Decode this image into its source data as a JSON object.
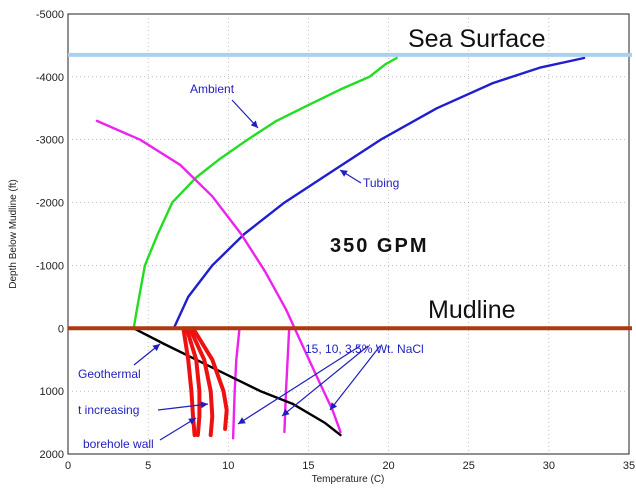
{
  "chart_data": {
    "type": "line",
    "title": "",
    "xlabel": "Temperature (C)",
    "ylabel": "Depth Below Mudline (ft)",
    "xlim": [
      0,
      35
    ],
    "ylim": [
      2000,
      -5000
    ],
    "xticks": [
      "0",
      "5",
      "10",
      "15",
      "20",
      "25",
      "30",
      "35"
    ],
    "yticks": [
      "-5000",
      "-4000",
      "-3000",
      "-2000",
      "-1000",
      "0",
      "1000",
      "2000"
    ],
    "grid": true,
    "colors": {
      "ambient": "#22dd22",
      "tubing": "#1f1fd0",
      "magenta": "#ee22ee",
      "geothermal": "#000000",
      "borehole": "#ee1111",
      "sea_surface": "#a8d0f0",
      "mudline": "#b03a10",
      "annotation": "#1f1fbf"
    },
    "series": [
      {
        "name": "Ambient",
        "color": "#22dd22",
        "x": [
          4.1,
          4.3,
          4.8,
          5.6,
          6.5,
          8,
          9.5,
          11.2,
          13,
          15,
          17,
          18.8,
          19.8,
          20.5
        ],
        "y": [
          0,
          -300,
          -1000,
          -1500,
          -2000,
          -2400,
          -2700,
          -3000,
          -3300,
          -3550,
          -3800,
          -4000,
          -4200,
          -4300
        ]
      },
      {
        "name": "Tubing",
        "color": "#1f1fd0",
        "x": [
          6.6,
          7.5,
          9,
          11,
          13.5,
          16.5,
          19.5,
          23,
          26.5,
          29.5,
          32.2
        ],
        "y": [
          0,
          -500,
          -1000,
          -1500,
          -2000,
          -2500,
          -3000,
          -3500,
          -3900,
          -4150,
          -4300
        ]
      },
      {
        "name": "",
        "color": "#ee22ee",
        "x": [
          1.8,
          4.5,
          7,
          9,
          10.8,
          12.3,
          13.6,
          14.5,
          15.4,
          16.5,
          17
        ],
        "y": [
          -3300,
          -3000,
          -2600,
          -2100,
          -1500,
          -900,
          -300,
          200,
          700,
          1300,
          1650
        ]
      },
      {
        "name": "",
        "color": "#ee22ee",
        "x": [
          13.8,
          13.7,
          13.6,
          13.5
        ],
        "y": [
          0,
          500,
          1000,
          1650
        ]
      },
      {
        "name": "",
        "color": "#ee22ee",
        "x": [
          10.7,
          10.5,
          10.4,
          10.3
        ],
        "y": [
          0,
          500,
          1000,
          1750
        ]
      },
      {
        "name": "Geothermal",
        "color": "#000000",
        "x": [
          4.1,
          6,
          8,
          10,
          12,
          14,
          16,
          17
        ],
        "y": [
          0,
          250,
          500,
          750,
          1000,
          1200,
          1500,
          1700
        ]
      },
      {
        "name": "borehole wall",
        "color": "#ee1111",
        "x": [
          7.2,
          7.5,
          7.7,
          7.8,
          7.9
        ],
        "y": [
          0,
          500,
          1000,
          1400,
          1700
        ]
      },
      {
        "name": "",
        "color": "#ee1111",
        "x": [
          7.4,
          8,
          8.2,
          8.2,
          8.1
        ],
        "y": [
          0,
          500,
          1000,
          1400,
          1700
        ]
      },
      {
        "name": "",
        "color": "#ee1111",
        "x": [
          7.6,
          8.5,
          8.9,
          9.0,
          8.9
        ],
        "y": [
          0,
          500,
          1000,
          1400,
          1700
        ]
      },
      {
        "name": "",
        "color": "#ee1111",
        "x": [
          7.8,
          9,
          9.7,
          9.9,
          9.8
        ],
        "y": [
          0,
          500,
          1000,
          1300,
          1600
        ]
      }
    ],
    "reference_lines": [
      {
        "label": "Sea Surface",
        "y": -4350,
        "color": "#a8d0f0"
      },
      {
        "label": "Mudline",
        "y": 0,
        "color": "#b03a10"
      }
    ],
    "annotations": {
      "gpm": "350 GPM",
      "ambient": "Ambient",
      "tubing": "Tubing",
      "geothermal": "Geothermal",
      "t_increasing": "t increasing",
      "borehole_wall": "borehole wall",
      "nacl": "15, 10, 3.5% Wt. NaCl"
    }
  }
}
